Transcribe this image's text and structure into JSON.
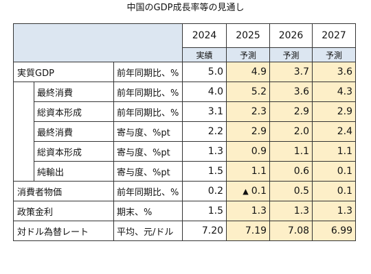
{
  "title": "中国のGDP成長率等の見通し",
  "years": [
    "2024",
    "2025",
    "2026",
    "2027"
  ],
  "year_types": [
    "実績",
    "予測",
    "予測",
    "予測"
  ],
  "colors": {
    "header_bg": "#dce6f1",
    "forecast_bg": "#fdefc8",
    "border": "#333333"
  },
  "rows": [
    {
      "label": "実質GDP",
      "indent": 0,
      "unit": "前年同期比、%",
      "values": [
        "5.0",
        "4.9",
        "3.7",
        "3.6"
      ]
    },
    {
      "label": "最終消費",
      "indent": 1,
      "unit": "前年同期比、%",
      "values": [
        "4.0",
        "5.2",
        "3.6",
        "4.3"
      ]
    },
    {
      "label": "総資本形成",
      "indent": 1,
      "unit": "前年同期比、%",
      "values": [
        "3.1",
        "2.3",
        "2.9",
        "2.9"
      ]
    },
    {
      "label": "最終消費",
      "indent": 1,
      "unit": "寄与度、%pt",
      "values": [
        "2.2",
        "2.9",
        "2.0",
        "2.4"
      ]
    },
    {
      "label": "総資本形成",
      "indent": 1,
      "unit": "寄与度、%pt",
      "values": [
        "1.3",
        "0.9",
        "1.1",
        "1.1"
      ]
    },
    {
      "label": "純輸出",
      "indent": 1,
      "unit": "寄与度、%pt",
      "values": [
        "1.5",
        "1.1",
        "0.6",
        "0.1"
      ]
    },
    {
      "label": "消費者物価",
      "indent": 0,
      "unit": "前年同期比、%",
      "values": [
        "0.2",
        "0.1",
        "0.5",
        "0.1"
      ],
      "negative_marker_col": 1,
      "negative_marker": "▲"
    },
    {
      "label": "政策金利",
      "indent": 0,
      "unit": "期末、%",
      "values": [
        "1.5",
        "1.3",
        "1.3",
        "1.3"
      ]
    },
    {
      "label": "対ドル為替レート",
      "indent": 0,
      "unit": "平均、元/ドル",
      "values": [
        "7.20",
        "7.19",
        "7.08",
        "6.99"
      ]
    }
  ]
}
